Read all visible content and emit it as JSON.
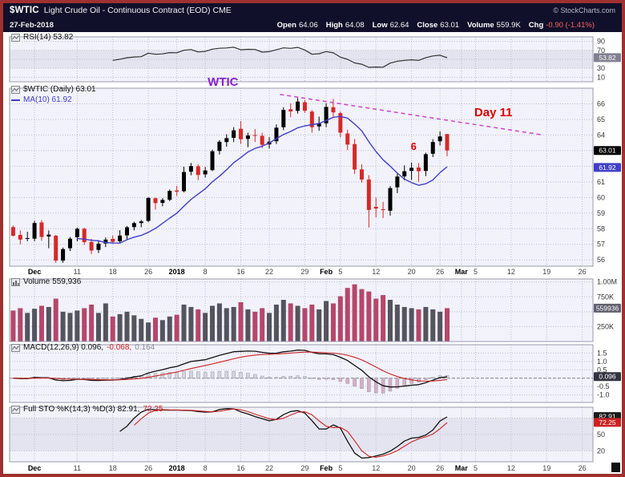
{
  "header": {
    "symbol": "$WTIC",
    "title": "Light Crude Oil - Continuous Contract (EOD) CME",
    "copyright": "© StockCharts.com",
    "date": "27-Feb-2018",
    "quote": {
      "open_label": "Open",
      "open": "64.06",
      "high_label": "High",
      "high": "64.08",
      "low_label": "Low",
      "low": "62.64",
      "close_label": "Close",
      "close": "63.01",
      "volume_label": "Volume",
      "volume": "559.9K",
      "chg_label": "Chg",
      "chg": "-0.90 (-1.41%)"
    }
  },
  "legends": {
    "rsi": "RSI(14) 53.82",
    "price_main": "$WTIC (Daily) 63.01",
    "price_ma": "MA(10) 61.92",
    "volume": "Volume 559,936",
    "macd_1": "MACD(12,26,9) 0.096,",
    "macd_2": "-0.068,",
    "macd_3": "0.164",
    "sto_1": "Full STO %K(14,3) %D(3) 82.91,",
    "sto_2": "72.25"
  },
  "colors": {
    "frame_border": "#a03030",
    "header_bg": "#10102a",
    "panel_bg": "#f2f2fa",
    "band_bg": "#e4e4f0",
    "grid": "#bcbcd2",
    "panel_border": "#9a9aae",
    "candle_up": "#000000",
    "candle_down": "#d62929",
    "ma": "#4040c8",
    "vol_up": "#54545e",
    "vol_down": "#b5476b",
    "signal": "#cc2222",
    "rsi_line": "#333333",
    "hist_pos": "#d4d4de",
    "hist_neg": "#d3afc6",
    "hist_stroke": "#9898a8",
    "badge_text": "#ffffff",
    "chg_negative": "#ff6262"
  },
  "chart_data": {
    "type": "candlestick",
    "title": "$WTIC (Daily) 63.01",
    "x_range": "Nov 28 2017 - Mar 27 2018 (daily trading slots)",
    "total_slots": 82,
    "x_ticks": [
      {
        "slot": 3,
        "label": "Dec",
        "bold": true
      },
      {
        "slot": 9,
        "label": "11"
      },
      {
        "slot": 14,
        "label": "18"
      },
      {
        "slot": 19,
        "label": "26"
      },
      {
        "slot": 23,
        "label": "2018",
        "bold": true
      },
      {
        "slot": 27,
        "label": "8"
      },
      {
        "slot": 32,
        "label": "16"
      },
      {
        "slot": 36,
        "label": "22"
      },
      {
        "slot": 41,
        "label": "29"
      },
      {
        "slot": 44,
        "label": "Feb",
        "bold": true
      },
      {
        "slot": 46,
        "label": "5"
      },
      {
        "slot": 51,
        "label": "12"
      },
      {
        "slot": 56,
        "label": "20"
      },
      {
        "slot": 60,
        "label": "26"
      },
      {
        "slot": 63,
        "label": "Mar",
        "bold": true
      },
      {
        "slot": 65,
        "label": "5"
      },
      {
        "slot": 70,
        "label": "12"
      },
      {
        "slot": 75,
        "label": "19"
      },
      {
        "slot": 80,
        "label": "26"
      }
    ],
    "dates": [
      "Nov 28",
      "Nov 29",
      "Nov 30",
      "Dec 1",
      "Dec 4",
      "Dec 5",
      "Dec 6",
      "Dec 7",
      "Dec 8",
      "Dec 11",
      "Dec 12",
      "Dec 13",
      "Dec 14",
      "Dec 15",
      "Dec 18",
      "Dec 19",
      "Dec 20",
      "Dec 21",
      "Dec 22",
      "Dec 26",
      "Dec 27",
      "Dec 28",
      "Dec 29",
      "Jan 2",
      "Jan 3",
      "Jan 4",
      "Jan 5",
      "Jan 8",
      "Jan 9",
      "Jan 10",
      "Jan 11",
      "Jan 12",
      "Jan 16",
      "Jan 17",
      "Jan 18",
      "Jan 19",
      "Jan 22",
      "Jan 23",
      "Jan 24",
      "Jan 25",
      "Jan 26",
      "Jan 29",
      "Jan 30",
      "Jan 31",
      "Feb 1",
      "Feb 2",
      "Feb 5",
      "Feb 6",
      "Feb 7",
      "Feb 8",
      "Feb 9",
      "Feb 12",
      "Feb 13",
      "Feb 14",
      "Feb 15",
      "Feb 16",
      "Feb 20",
      "Feb 21",
      "Feb 22",
      "Feb 23",
      "Feb 26",
      "Feb 27"
    ],
    "ohlc": [
      [
        58.1,
        58.2,
        57.5,
        57.55
      ],
      [
        57.6,
        57.9,
        57.0,
        57.3
      ],
      [
        57.35,
        57.8,
        57.2,
        57.4
      ],
      [
        57.36,
        58.5,
        57.2,
        58.36
      ],
      [
        58.4,
        58.55,
        57.23,
        57.47
      ],
      [
        57.5,
        57.89,
        56.75,
        57.62
      ],
      [
        57.55,
        57.6,
        55.82,
        55.96
      ],
      [
        55.96,
        56.79,
        55.82,
        56.69
      ],
      [
        56.75,
        57.47,
        56.57,
        57.36
      ],
      [
        57.46,
        58.08,
        57.19,
        57.99
      ],
      [
        58.0,
        58.06,
        56.96,
        57.14
      ],
      [
        57.15,
        57.35,
        56.37,
        56.6
      ],
      [
        56.64,
        57.27,
        56.44,
        57.04
      ],
      [
        57.05,
        57.44,
        56.82,
        57.3
      ],
      [
        57.35,
        57.56,
        57.03,
        57.16
      ],
      [
        57.2,
        57.9,
        57.11,
        57.56
      ],
      [
        57.57,
        58.17,
        57.32,
        58.09
      ],
      [
        58.1,
        58.45,
        57.89,
        58.36
      ],
      [
        58.36,
        58.56,
        58.09,
        58.47
      ],
      [
        58.5,
        60.01,
        58.42,
        59.97
      ],
      [
        59.95,
        60.0,
        59.22,
        59.64
      ],
      [
        59.65,
        59.96,
        59.43,
        59.84
      ],
      [
        59.85,
        60.51,
        59.77,
        60.42
      ],
      [
        60.45,
        60.74,
        60.1,
        60.37
      ],
      [
        60.4,
        61.97,
        60.33,
        61.63
      ],
      [
        61.65,
        62.21,
        61.42,
        62.01
      ],
      [
        62.0,
        62.12,
        61.11,
        61.44
      ],
      [
        61.48,
        61.95,
        61.28,
        61.73
      ],
      [
        61.75,
        63.06,
        61.69,
        62.96
      ],
      [
        62.98,
        63.67,
        62.75,
        63.57
      ],
      [
        63.55,
        64.05,
        63.25,
        63.8
      ],
      [
        63.82,
        64.5,
        63.55,
        64.3
      ],
      [
        64.4,
        64.89,
        63.44,
        63.73
      ],
      [
        63.75,
        64.14,
        63.22,
        63.97
      ],
      [
        64.0,
        64.38,
        63.55,
        63.95
      ],
      [
        63.95,
        64.15,
        63.16,
        63.37
      ],
      [
        63.4,
        63.86,
        63.14,
        63.57
      ],
      [
        63.6,
        64.68,
        63.42,
        64.47
      ],
      [
        64.5,
        65.78,
        64.31,
        65.61
      ],
      [
        65.65,
        66.03,
        65.14,
        65.51
      ],
      [
        65.55,
        66.37,
        65.37,
        66.14
      ],
      [
        66.1,
        66.25,
        65.42,
        65.56
      ],
      [
        65.5,
        65.6,
        64.15,
        64.5
      ],
      [
        64.55,
        65.18,
        64.27,
        64.73
      ],
      [
        64.75,
        66.02,
        64.51,
        65.8
      ],
      [
        65.78,
        66.31,
        65.17,
        65.45
      ],
      [
        65.4,
        65.5,
        63.85,
        64.15
      ],
      [
        64.1,
        64.34,
        63.03,
        63.39
      ],
      [
        63.42,
        63.75,
        61.51,
        61.79
      ],
      [
        61.8,
        62.13,
        60.95,
        61.15
      ],
      [
        61.15,
        61.43,
        58.07,
        59.2
      ],
      [
        59.4,
        59.99,
        58.73,
        59.29
      ],
      [
        59.25,
        59.72,
        58.68,
        59.19
      ],
      [
        59.15,
        60.73,
        58.83,
        60.6
      ],
      [
        60.65,
        61.53,
        60.28,
        61.34
      ],
      [
        61.35,
        62.06,
        61.1,
        61.68
      ],
      [
        61.7,
        62.24,
        61.13,
        61.9
      ],
      [
        61.92,
        62.2,
        61.01,
        61.68
      ],
      [
        61.7,
        62.87,
        61.37,
        62.77
      ],
      [
        62.8,
        63.73,
        62.59,
        63.55
      ],
      [
        63.6,
        64.24,
        63.33,
        63.91
      ],
      [
        64.06,
        64.08,
        62.64,
        63.01
      ]
    ],
    "volume": [
      520000,
      560000,
      480000,
      550000,
      600000,
      580000,
      720000,
      500000,
      480000,
      520000,
      560000,
      620000,
      480000,
      640000,
      420000,
      460000,
      500000,
      440000,
      380000,
      320000,
      400000,
      360000,
      420000,
      450000,
      620000,
      580000,
      540000,
      480000,
      600000,
      640000,
      560000,
      580000,
      660000,
      540000,
      500000,
      560000,
      480000,
      620000,
      700000,
      640000,
      600000,
      560000,
      620000,
      540000,
      680000,
      640000,
      760000,
      900000,
      960000,
      880000,
      840000,
      720000,
      780000,
      700000,
      620000,
      580000,
      560000,
      540000,
      580000,
      540000,
      500000,
      559936
    ],
    "overlays": {
      "ma_period": 10,
      "ma_last": 61.92
    },
    "panels": {
      "rsi": {
        "period": 14,
        "last": 53.82,
        "ylim": [
          0,
          100
        ],
        "grid": [
          90,
          70,
          50,
          30,
          10
        ],
        "band": [
          30,
          70
        ],
        "axis_labels": [
          [
            90,
            "90"
          ],
          [
            70,
            "70"
          ],
          [
            30,
            "30"
          ],
          [
            10,
            "10"
          ]
        ],
        "badges": [
          {
            "text": "53.82",
            "value": 53.82,
            "bg": "#808090"
          }
        ]
      },
      "price": {
        "last": 63.01,
        "ylim": [
          55.6,
          67.0
        ],
        "grid": [
          56,
          57,
          58,
          59,
          60,
          61,
          62,
          63,
          64,
          65,
          66
        ],
        "axis_labels": [
          [
            66,
            "66"
          ],
          [
            65,
            "65"
          ],
          [
            64,
            "64"
          ],
          [
            63,
            "63"
          ],
          [
            62,
            "62"
          ],
          [
            61,
            "61"
          ],
          [
            60,
            "60"
          ],
          [
            59,
            "59"
          ],
          [
            58,
            "58"
          ],
          [
            57,
            "57"
          ],
          [
            56,
            "56"
          ]
        ],
        "badges": [
          {
            "text": "63.01",
            "value": 63.01,
            "bg": "#000000"
          },
          {
            "text": "61.92",
            "value": 61.92,
            "bg": "#4040c8"
          }
        ]
      },
      "volume": {
        "last": 559936,
        "ylim": [
          0,
          1050000
        ],
        "grid": [
          250000,
          500000,
          750000,
          1000000
        ],
        "axis_labels": [
          [
            1000000,
            "1.00M"
          ],
          [
            750000,
            "750K"
          ],
          [
            250000,
            "250K"
          ]
        ],
        "badges": [
          {
            "text": "559936",
            "value": 559936,
            "bg": "#606070"
          }
        ]
      },
      "macd": {
        "params": [
          12,
          26,
          9
        ],
        "last": [
          0.096,
          -0.068,
          0.164
        ],
        "ylim": [
          -1.45,
          2.0
        ],
        "grid": [
          1.5,
          1.0,
          0.5,
          -0.5,
          -1.0
        ],
        "zero_line": true,
        "axis_labels": [
          [
            1.5,
            "1.5"
          ],
          [
            1.0,
            "1.0"
          ],
          [
            0.5,
            "0.5"
          ],
          [
            -0.5,
            "-0.5"
          ],
          [
            -1.0,
            "-1.0"
          ]
        ],
        "badges": [
          {
            "text": "0.096",
            "value": 0.096,
            "bg": "#333340"
          }
        ]
      },
      "sto": {
        "params": [
          14,
          3,
          3
        ],
        "last": [
          82.91,
          72.25
        ],
        "ylim": [
          0,
          100
        ],
        "grid": [
          80,
          50,
          20
        ],
        "band": [
          20,
          80
        ],
        "axis_labels": [
          [
            50,
            "50"
          ],
          [
            20,
            "20"
          ]
        ],
        "badges": [
          {
            "text": "82.91",
            "value": 82.91,
            "bg": "#1a1a1a"
          },
          {
            "text": "72.25",
            "value": 72.25,
            "bg": "#cc2222"
          }
        ]
      }
    },
    "annotations": {
      "wtic": {
        "text": "WTIC",
        "slot": 29.5,
        "value": 67.15,
        "color": "#8822cc",
        "size": 15
      },
      "day11": {
        "text": "Day 11",
        "slot": 67.5,
        "value": 65.2,
        "color": "#dd0000",
        "size": 15
      },
      "six": {
        "text": "6",
        "slot": 56.3,
        "value": 63.05,
        "color": "#dd0000",
        "size": 13
      },
      "trendline": {
        "x1": 37.5,
        "y1": 66.6,
        "x2": 74.5,
        "y2": 64.0,
        "color": "#cc44cc",
        "style": "dashed"
      }
    }
  }
}
